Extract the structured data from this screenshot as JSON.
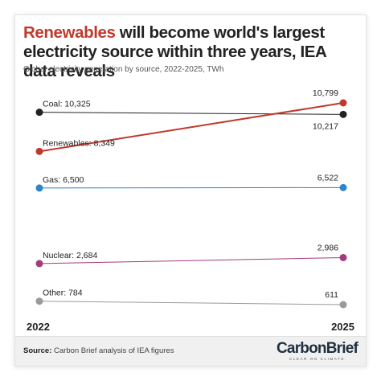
{
  "title_highlight": "Renewables",
  "title_rest": " will become world's largest electricity source within three years, IEA data reveals",
  "subtitle": "Global electricity generation by source, 2022-2025, TWh",
  "source_label": "Source:",
  "source_text": " Carbon Brief analysis of IEA figures",
  "logo": {
    "text": "CarbonBrief",
    "tagline": "CLEAR ON CLIMATE"
  },
  "chart_data": {
    "type": "line",
    "x": [
      "2022",
      "2025"
    ],
    "series": [
      {
        "name": "Coal",
        "values": [
          10325,
          10217
        ],
        "start_label": "Coal: 10,325",
        "end_label": "10,217",
        "color": "#222222"
      },
      {
        "name": "Renewables",
        "values": [
          8349,
          10799
        ],
        "start_label": "Renewables: 8,349",
        "end_label": "10,799",
        "color": "#c0392b"
      },
      {
        "name": "Gas",
        "values": [
          6500,
          6522
        ],
        "start_label": "Gas: 6,500",
        "end_label": "6,522",
        "color": "#2e86c9"
      },
      {
        "name": "Nuclear",
        "values": [
          2684,
          2986
        ],
        "start_label": "Nuclear: 2,684",
        "end_label": "2,986",
        "color": "#a23c7d"
      },
      {
        "name": "Other",
        "values": [
          784,
          611
        ],
        "start_label": "Other: 784",
        "end_label": "611",
        "color": "#9a9a9a"
      }
    ],
    "grid": false,
    "legend": "none"
  }
}
